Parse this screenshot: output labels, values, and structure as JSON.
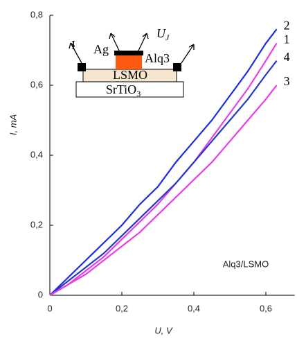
{
  "chart_data": {
    "type": "line",
    "x_label": "U, V",
    "y_label": "I, mA",
    "annotation": "Alq3/LSMO",
    "xlim": [
      0,
      0.68
    ],
    "ylim": [
      0,
      0.8
    ],
    "xticks": [
      0,
      {
        "value": 0.2,
        "label": "0,2"
      },
      {
        "value": 0.4,
        "label": "0,4"
      },
      {
        "value": 0.6,
        "label": "0,6"
      }
    ],
    "yticks": [
      0,
      {
        "value": 0.2,
        "label": "0,2"
      },
      {
        "value": 0.4,
        "label": "0,4"
      },
      {
        "value": 0.6,
        "label": "0,6"
      },
      {
        "value": 0.8,
        "label": "0,8"
      }
    ],
    "x": [
      0,
      0.05,
      0.1,
      0.15,
      0.2,
      0.25,
      0.3,
      0.35,
      0.4,
      0.45,
      0.5,
      0.55,
      0.6,
      0.63
    ],
    "series": [
      {
        "name": "2",
        "color": "#1a2be0",
        "values": [
          0,
          0.05,
          0.1,
          0.15,
          0.2,
          0.26,
          0.31,
          0.38,
          0.44,
          0.5,
          0.57,
          0.64,
          0.72,
          0.76
        ]
      },
      {
        "name": "1",
        "color": "#e83de8",
        "values": [
          0,
          0.03,
          0.07,
          0.11,
          0.16,
          0.21,
          0.26,
          0.32,
          0.38,
          0.45,
          0.52,
          0.59,
          0.67,
          0.72
        ]
      },
      {
        "name": "4",
        "color": "#2438c8",
        "values": [
          0,
          0.04,
          0.08,
          0.12,
          0.17,
          0.22,
          0.27,
          0.32,
          0.38,
          0.44,
          0.5,
          0.56,
          0.63,
          0.67
        ]
      },
      {
        "name": "3",
        "color": "#e83de8",
        "values": [
          0,
          0.03,
          0.06,
          0.1,
          0.14,
          0.18,
          0.23,
          0.28,
          0.33,
          0.38,
          0.44,
          0.5,
          0.56,
          0.6
        ]
      }
    ],
    "inset": {
      "current": "I",
      "electrode": "Ag",
      "voltage": {
        "text": "U",
        "sub": "J"
      },
      "organic": "Alq3",
      "film": "LSMO",
      "substrate": {
        "text": "SrTiO",
        "sub": "3"
      }
    }
  }
}
